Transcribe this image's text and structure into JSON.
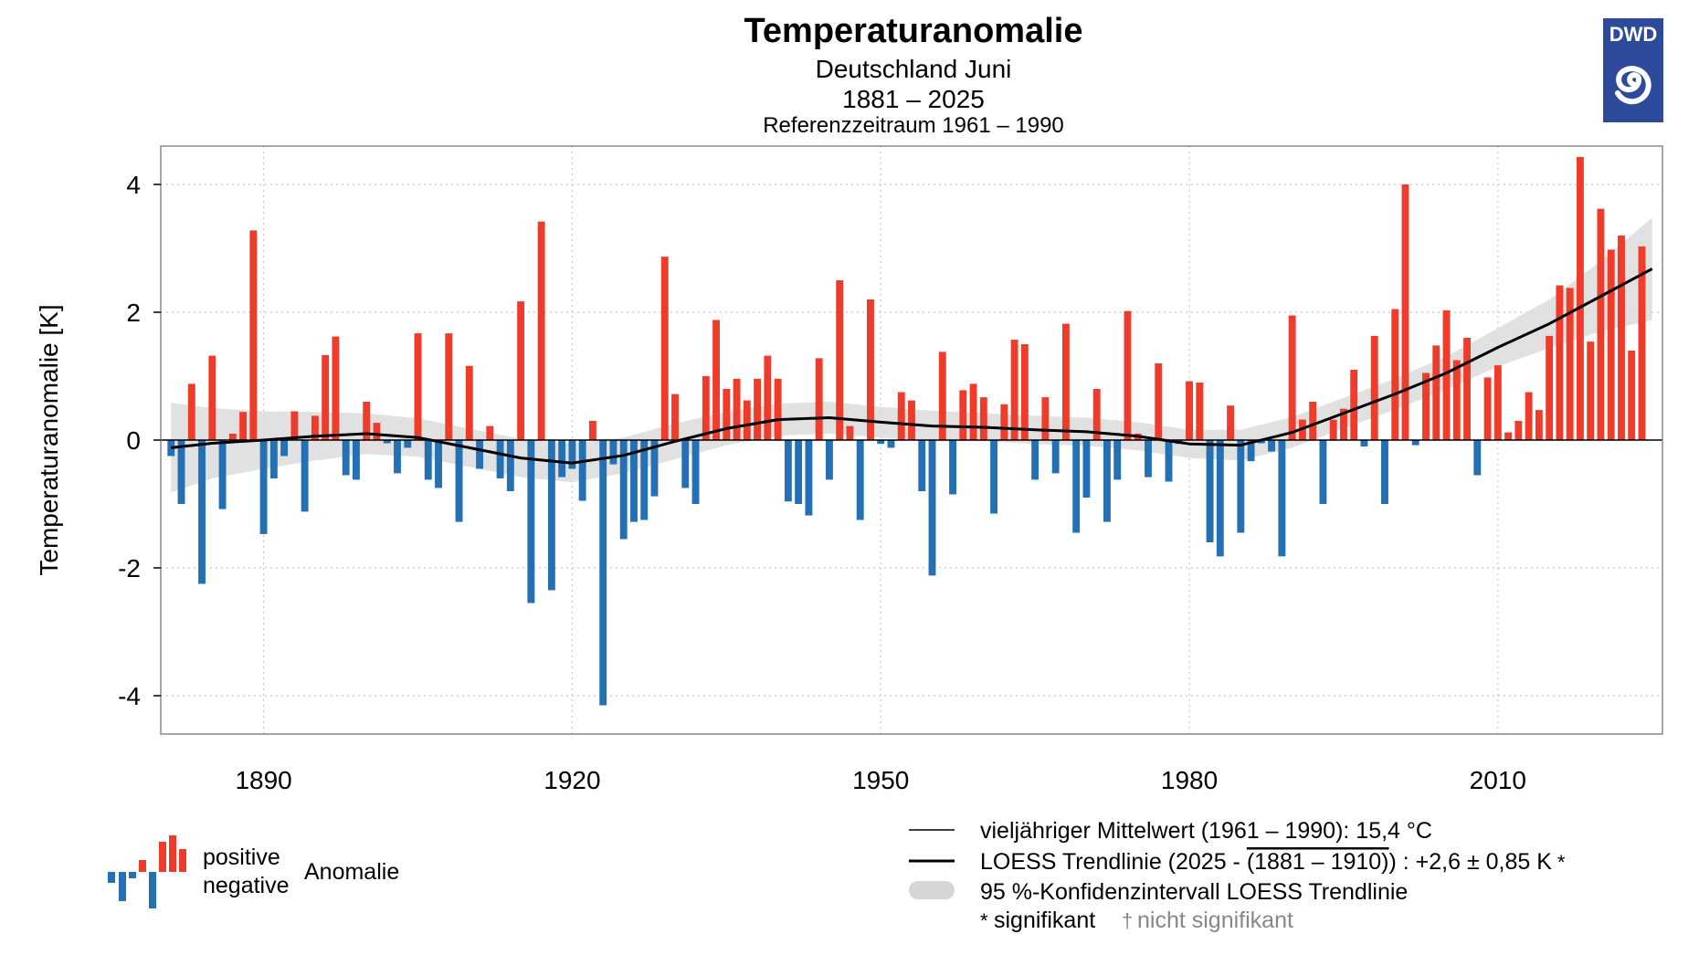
{
  "title": "Temperaturanomalie",
  "subtitle1": "Deutschland Juni",
  "subtitle2": "1881 – 2025",
  "subtitle3": "Referenzzeitraum 1961 – 1990",
  "logo_text": "DWD",
  "colors": {
    "positive": "#ee3b2a",
    "negative": "#2470b4",
    "trend": "#000000",
    "confidence": "#dcdcdc"
  },
  "chart_data": {
    "type": "bar",
    "title": "Temperaturanomalie",
    "ylabel": "Temperaturanomalie [K]",
    "xlabel": "",
    "ylim": [
      -4.6,
      4.6
    ],
    "yticks": [
      -4,
      -2,
      0,
      2,
      4
    ],
    "ytick_labels": [
      "-4",
      "-2",
      "0",
      "2",
      "4"
    ],
    "xticks": [
      1890,
      1920,
      1950,
      1980,
      2010
    ],
    "xlim": [
      1880,
      2026
    ],
    "grid": true,
    "start_year": 1881,
    "values": [
      -0.25,
      -1.0,
      0.88,
      -2.25,
      1.32,
      -1.08,
      0.1,
      0.44,
      3.28,
      -1.47,
      -0.6,
      -0.25,
      0.45,
      -1.12,
      0.38,
      1.33,
      1.62,
      -0.55,
      -0.62,
      0.6,
      0.27,
      -0.05,
      -0.52,
      -0.12,
      1.67,
      -0.62,
      -0.75,
      1.67,
      -1.28,
      1.16,
      -0.45,
      0.22,
      -0.6,
      -0.8,
      2.17,
      -2.55,
      3.42,
      -2.35,
      -0.58,
      -0.45,
      -0.95,
      0.3,
      -4.15,
      -0.38,
      -1.55,
      -1.28,
      -1.25,
      -0.88,
      2.87,
      0.72,
      -0.75,
      -1.0,
      1.0,
      1.88,
      0.8,
      0.96,
      0.62,
      0.96,
      1.32,
      0.96,
      -0.96,
      -1.0,
      -1.18,
      1.28,
      -0.62,
      2.5,
      0.22,
      -1.25,
      2.2,
      -0.06,
      -0.12,
      0.75,
      0.62,
      -0.8,
      -2.12,
      1.38,
      -0.85,
      0.78,
      0.88,
      0.67,
      -1.15,
      0.56,
      1.57,
      1.5,
      -0.62,
      0.67,
      -0.52,
      1.82,
      -1.45,
      -0.9,
      0.8,
      -1.28,
      -0.62,
      2.02,
      0.1,
      -0.58,
      1.2,
      -0.65,
      -0.06,
      0.92,
      0.9,
      -1.6,
      -1.82,
      0.54,
      -1.45,
      -0.33,
      -0.05,
      -0.18,
      -1.82,
      1.95,
      0.32,
      0.6,
      -1.0,
      0.32,
      0.49,
      1.1,
      -0.1,
      1.63,
      -1.0,
      2.05,
      4.0,
      -0.08,
      1.05,
      1.48,
      2.03,
      1.25,
      1.6,
      -0.55,
      0.98,
      1.17,
      0.12,
      0.3,
      0.75,
      0.47,
      1.63,
      2.42,
      2.38,
      4.43,
      1.54,
      3.62,
      2.98,
      3.2,
      1.4,
      3.03
    ],
    "trend": {
      "x": [
        1881,
        1885,
        1890,
        1895,
        1900,
        1905,
        1910,
        1915,
        1920,
        1925,
        1930,
        1935,
        1940,
        1945,
        1950,
        1955,
        1960,
        1965,
        1970,
        1975,
        1980,
        1985,
        1990,
        1995,
        2000,
        2005,
        2010,
        2015,
        2020,
        2025
      ],
      "y": [
        -0.12,
        -0.05,
        0.0,
        0.06,
        0.1,
        0.04,
        -0.12,
        -0.28,
        -0.36,
        -0.24,
        -0.02,
        0.18,
        0.32,
        0.35,
        0.28,
        0.22,
        0.2,
        0.16,
        0.13,
        0.06,
        -0.06,
        -0.08,
        0.12,
        0.42,
        0.72,
        1.05,
        1.45,
        1.82,
        2.25,
        2.68
      ],
      "ci_halfwidth": [
        0.7,
        0.55,
        0.45,
        0.38,
        0.32,
        0.3,
        0.3,
        0.3,
        0.3,
        0.28,
        0.28,
        0.26,
        0.25,
        0.25,
        0.24,
        0.24,
        0.22,
        0.22,
        0.22,
        0.22,
        0.22,
        0.24,
        0.24,
        0.24,
        0.24,
        0.26,
        0.3,
        0.38,
        0.55,
        0.8
      ]
    }
  },
  "legend": {
    "positive": "positive",
    "negative": "negative",
    "anomaly": "Anomalie",
    "mean_line": "vieljähriger Mittelwert (1961 – 1990): 15,4 °C",
    "trend_prefix": "LOESS Trendlinie (2025 - ",
    "trend_period": "(1881 – 1910)",
    "trend_suffix": ") : +2,6 ± 0,85 K",
    "trend_mark": "*",
    "confidence": "95 %-Konfidenzintervall LOESS Trendlinie",
    "sig_mark": "*",
    "significant": "signifikant",
    "nonsig_mark": "†",
    "not_significant": "nicht signifikant"
  }
}
